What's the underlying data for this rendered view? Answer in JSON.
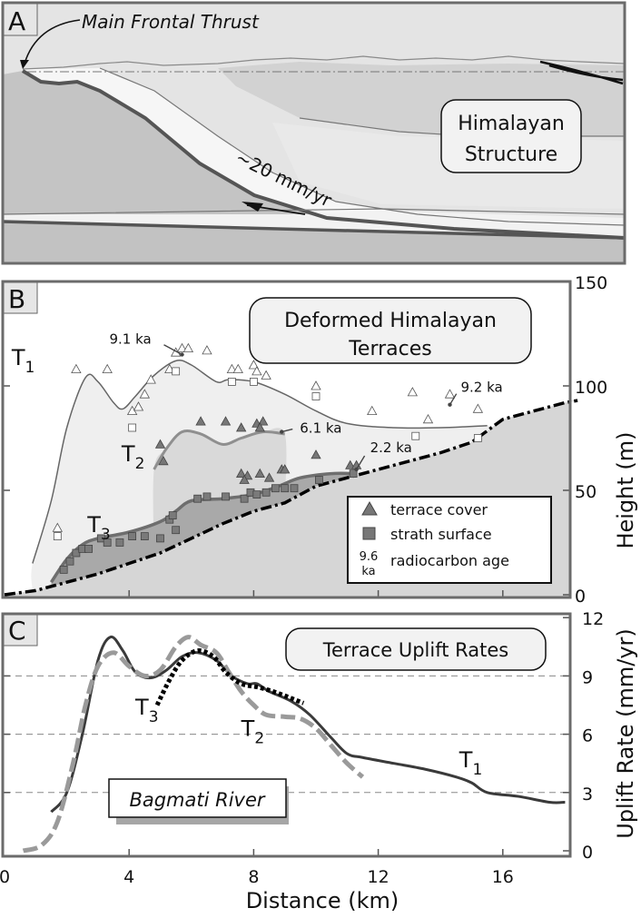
{
  "panel_a": {
    "label": "A",
    "annotation": "Main Frontal Thrust",
    "rate_label": "~20 mm/yr",
    "title_line1": "Himalayan",
    "title_line2": "Structure"
  },
  "colors": {
    "frame": "#6b6b6b",
    "t1_fill": "#efefef",
    "t2_fill": "#d9d9d9",
    "t3_fill": "#a9a9a9",
    "ground_fill": "#d6d6d6",
    "t1_line": "#666666",
    "t2_line": "#8f8f8f",
    "t3_line": "#6e6e6e",
    "c_t1": "#3a3a3a",
    "c_t3": "#9a9a9a",
    "c_t2": "#000000"
  },
  "chart_data": [
    {
      "panel": "B",
      "type": "line",
      "title_line1": "Deformed Himalayan",
      "title_line2": "Terraces",
      "xlabel": "",
      "ylabel": "Height (m)",
      "xlim": [
        0,
        18.4
      ],
      "ylim": [
        0,
        150
      ],
      "yticks": [
        "0",
        "50",
        "100",
        "150"
      ],
      "xticks": [
        4,
        8,
        12,
        16
      ],
      "grid": false,
      "legend_position": "bottom-right",
      "legend": {
        "triangle": "terrace cover",
        "square": "strath surface",
        "age_symbol_line1": "9.6",
        "age_symbol_line2": "ka",
        "age": "radiocarbon age"
      },
      "series": [
        {
          "label": "T",
          "sub": "1",
          "x": [
            0.9,
            1.5,
            2.0,
            2.6,
            3.0,
            3.5,
            3.8,
            4.2,
            4.8,
            5.5,
            6.0,
            6.8,
            7.2,
            8.0,
            9.0,
            10.0,
            11.0,
            12.5,
            14.0,
            15.5
          ],
          "y": [
            15,
            45,
            80,
            104,
            102,
            92,
            89,
            95,
            105,
            112,
            110,
            102,
            103,
            102,
            96,
            88,
            82,
            80,
            80,
            81
          ]
        },
        {
          "label": "T",
          "sub": "2",
          "x": [
            4.8,
            5.2,
            5.7,
            6.3,
            7.0,
            7.6,
            8.3,
            9.0
          ],
          "y": [
            60,
            70,
            78,
            77,
            72,
            75,
            78,
            77
          ]
        },
        {
          "label": "T",
          "sub": "3",
          "x": [
            1.5,
            2.0,
            2.5,
            3.0,
            4.0,
            5.0,
            5.5,
            6.0,
            7.0,
            8.0,
            8.8,
            9.5,
            10.5,
            11.3
          ],
          "y": [
            6,
            17,
            24,
            27,
            30,
            35,
            40,
            45,
            46,
            48,
            52,
            56,
            58,
            58
          ]
        },
        {
          "label": "",
          "sub": "",
          "x": [
            0,
            1,
            2,
            3,
            4,
            5,
            6,
            7,
            8,
            9,
            10,
            11,
            12,
            13,
            14,
            15,
            16,
            17,
            18,
            18.4
          ],
          "y": [
            0,
            2,
            6,
            10,
            15,
            20,
            27,
            34,
            40,
            44,
            52,
            56,
            60,
            64,
            68,
            73,
            84,
            88,
            92,
            93
          ]
        }
      ],
      "t1_terrace_cover_open": [
        [
          1.7,
          32
        ],
        [
          2.3,
          108
        ],
        [
          3.3,
          108
        ],
        [
          4.1,
          88
        ],
        [
          4.3,
          90
        ],
        [
          4.5,
          96
        ],
        [
          4.7,
          103
        ],
        [
          5.3,
          108
        ],
        [
          5.5,
          116
        ],
        [
          5.7,
          118
        ],
        [
          5.9,
          118
        ],
        [
          6.5,
          117
        ],
        [
          7.3,
          108
        ],
        [
          7.5,
          108
        ],
        [
          8.0,
          110
        ],
        [
          8.1,
          107
        ],
        [
          8.4,
          105
        ],
        [
          10.0,
          100
        ],
        [
          11.8,
          88
        ],
        [
          13.1,
          97
        ],
        [
          13.6,
          84
        ],
        [
          14.3,
          96
        ],
        [
          15.2,
          89
        ]
      ],
      "t1_strath_open": [
        [
          1.7,
          28
        ],
        [
          4.1,
          80
        ],
        [
          5.5,
          107
        ],
        [
          7.3,
          102
        ],
        [
          8.0,
          102
        ],
        [
          10.0,
          95
        ],
        [
          13.2,
          76
        ],
        [
          15.2,
          75
        ]
      ],
      "terrace_cover": [
        [
          5.0,
          72
        ],
        [
          5.1,
          64
        ],
        [
          6.3,
          83
        ],
        [
          7.1,
          83
        ],
        [
          7.6,
          80
        ],
        [
          8.1,
          82
        ],
        [
          8.3,
          83
        ],
        [
          8.2,
          80
        ],
        [
          10.0,
          67
        ],
        [
          11.1,
          62
        ],
        [
          11.3,
          62
        ],
        [
          7.6,
          58
        ],
        [
          7.8,
          57
        ],
        [
          7.7,
          55
        ],
        [
          8.2,
          58
        ],
        [
          8.5,
          56
        ],
        [
          8.9,
          60
        ],
        [
          9.0,
          60
        ]
      ],
      "strath_surface": [
        [
          1.9,
          12
        ],
        [
          2.1,
          16
        ],
        [
          2.3,
          20
        ],
        [
          2.5,
          22
        ],
        [
          2.7,
          22
        ],
        [
          3.1,
          27
        ],
        [
          3.3,
          25
        ],
        [
          3.7,
          25
        ],
        [
          4.1,
          28
        ],
        [
          4.5,
          28
        ],
        [
          5.0,
          27
        ],
        [
          5.3,
          36
        ],
        [
          5.4,
          38
        ],
        [
          5.5,
          31
        ],
        [
          6.2,
          46
        ],
        [
          6.5,
          47
        ],
        [
          7.1,
          47
        ],
        [
          7.7,
          46
        ],
        [
          7.9,
          49
        ],
        [
          8.1,
          48
        ],
        [
          8.4,
          49
        ],
        [
          8.7,
          51
        ],
        [
          9.0,
          51
        ],
        [
          9.3,
          51
        ],
        [
          10.1,
          55
        ],
        [
          11.2,
          58
        ]
      ],
      "ages": [
        {
          "text": "9.1 ka",
          "x": 5.7,
          "y": 115
        },
        {
          "text": "6.1 ka",
          "x": 8.9,
          "y": 78
        },
        {
          "text": "2.2 ka",
          "x": 11.3,
          "y": 60
        },
        {
          "text": "9.2 ka",
          "x": 14.3,
          "y": 91
        }
      ]
    },
    {
      "panel": "C",
      "type": "line",
      "title": "Terrace Uplift Rates",
      "annotation": "Bagmati River",
      "xlabel": "Distance (km)",
      "ylabel": "Uplift Rate (mm/yr)",
      "xlim": [
        0,
        18.4
      ],
      "ylim": [
        0,
        12
      ],
      "xticks": [
        "0",
        "4",
        "8",
        "12",
        "16"
      ],
      "yticks": [
        "0",
        "3",
        "6",
        "9",
        "12"
      ],
      "grid": true,
      "series": [
        {
          "label": "T",
          "sub": "1",
          "style": "solid",
          "x": [
            1.5,
            2.0,
            2.5,
            3.0,
            3.4,
            3.8,
            4.2,
            4.7,
            5.2,
            5.7,
            6.2,
            6.8,
            7.3,
            7.8,
            8.1,
            8.5,
            9.2,
            9.8,
            10.5,
            11.0,
            11.5,
            12.5,
            13.5,
            14.5,
            15.0,
            15.5,
            16.5,
            17.5,
            18.0
          ],
          "y": [
            2.0,
            3.0,
            6.0,
            9.8,
            11.0,
            10.3,
            9.2,
            8.9,
            9.3,
            10.0,
            10.2,
            9.8,
            9.0,
            8.6,
            8.6,
            8.2,
            7.7,
            7.0,
            5.8,
            5.0,
            4.8,
            4.5,
            4.2,
            3.8,
            3.5,
            3.0,
            2.8,
            2.5,
            2.5
          ]
        },
        {
          "label": "T",
          "sub": "3",
          "style": "dashed",
          "x": [
            0.6,
            1.2,
            1.7,
            2.2,
            2.6,
            3.0,
            3.5,
            4.0,
            4.5,
            5.0,
            5.5,
            5.9,
            6.3,
            6.8,
            7.2,
            7.6,
            8.0,
            8.4,
            9.0,
            9.5,
            10.0,
            10.5,
            11.0,
            11.5
          ],
          "y": [
            0,
            0.3,
            1.5,
            4.5,
            7.5,
            9.5,
            10.2,
            9.5,
            9.0,
            9.3,
            10.5,
            11.0,
            10.6,
            10.2,
            9.2,
            8.2,
            7.5,
            7.0,
            6.9,
            6.8,
            6.3,
            5.4,
            4.5,
            3.8
          ]
        },
        {
          "label": "T",
          "sub": "2",
          "style": "dotted",
          "x": [
            4.9,
            5.3,
            5.7,
            6.2,
            6.7,
            7.1,
            7.6,
            8.2,
            8.8,
            9.6
          ],
          "y": [
            7.5,
            8.8,
            9.8,
            10.3,
            10.0,
            9.2,
            8.6,
            8.4,
            8.1,
            7.6
          ]
        }
      ]
    }
  ]
}
